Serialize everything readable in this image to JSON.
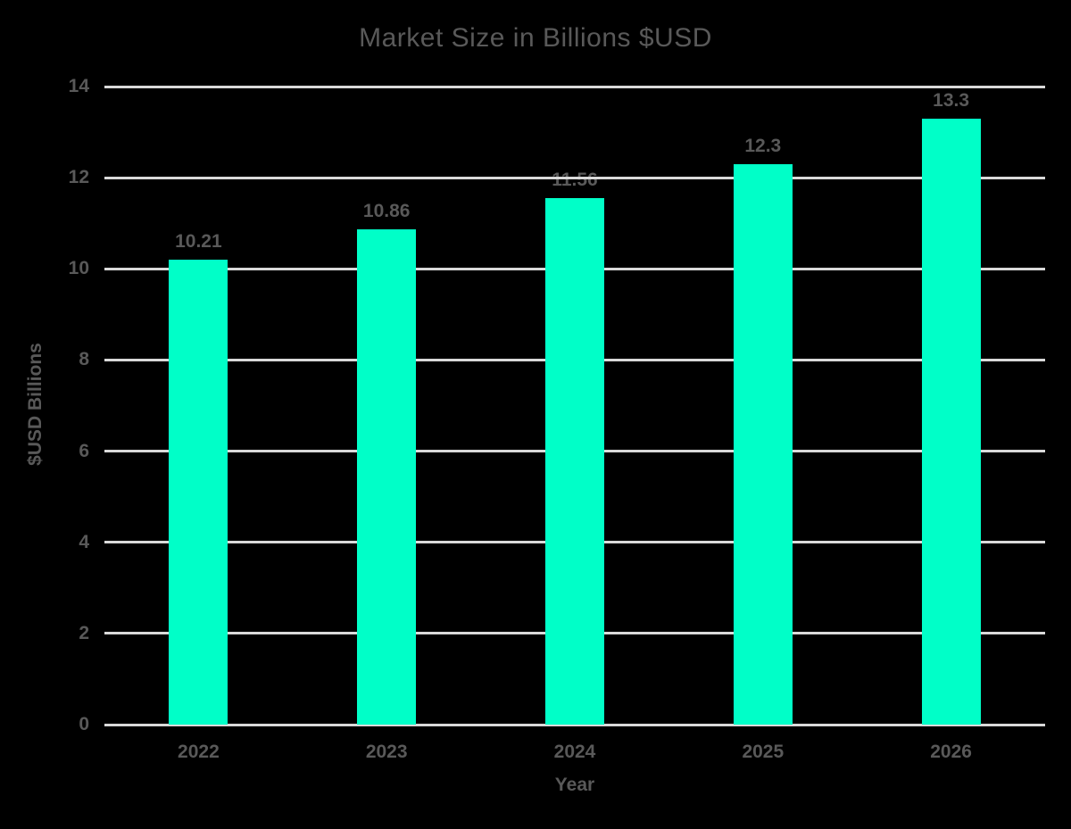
{
  "chart_data": {
    "type": "bar",
    "title": "Market Size in Billions $USD",
    "xlabel": "Year",
    "ylabel": "$USD Billions",
    "categories": [
      "2022",
      "2023",
      "2024",
      "2025",
      "2026"
    ],
    "values": [
      10.21,
      10.86,
      11.56,
      12.3,
      13.3
    ],
    "data_labels": [
      "10.21",
      "10.86",
      "11.56",
      "12.3",
      "13.3"
    ],
    "ylim": [
      0,
      14
    ],
    "yticks": [
      0,
      2,
      4,
      6,
      8,
      10,
      12,
      14
    ],
    "grid": true,
    "legend": false
  },
  "colors": {
    "background": "#000000",
    "bar_fill": "#00FFC8",
    "text": "#595959",
    "gridline": "#D9D9D9"
  }
}
